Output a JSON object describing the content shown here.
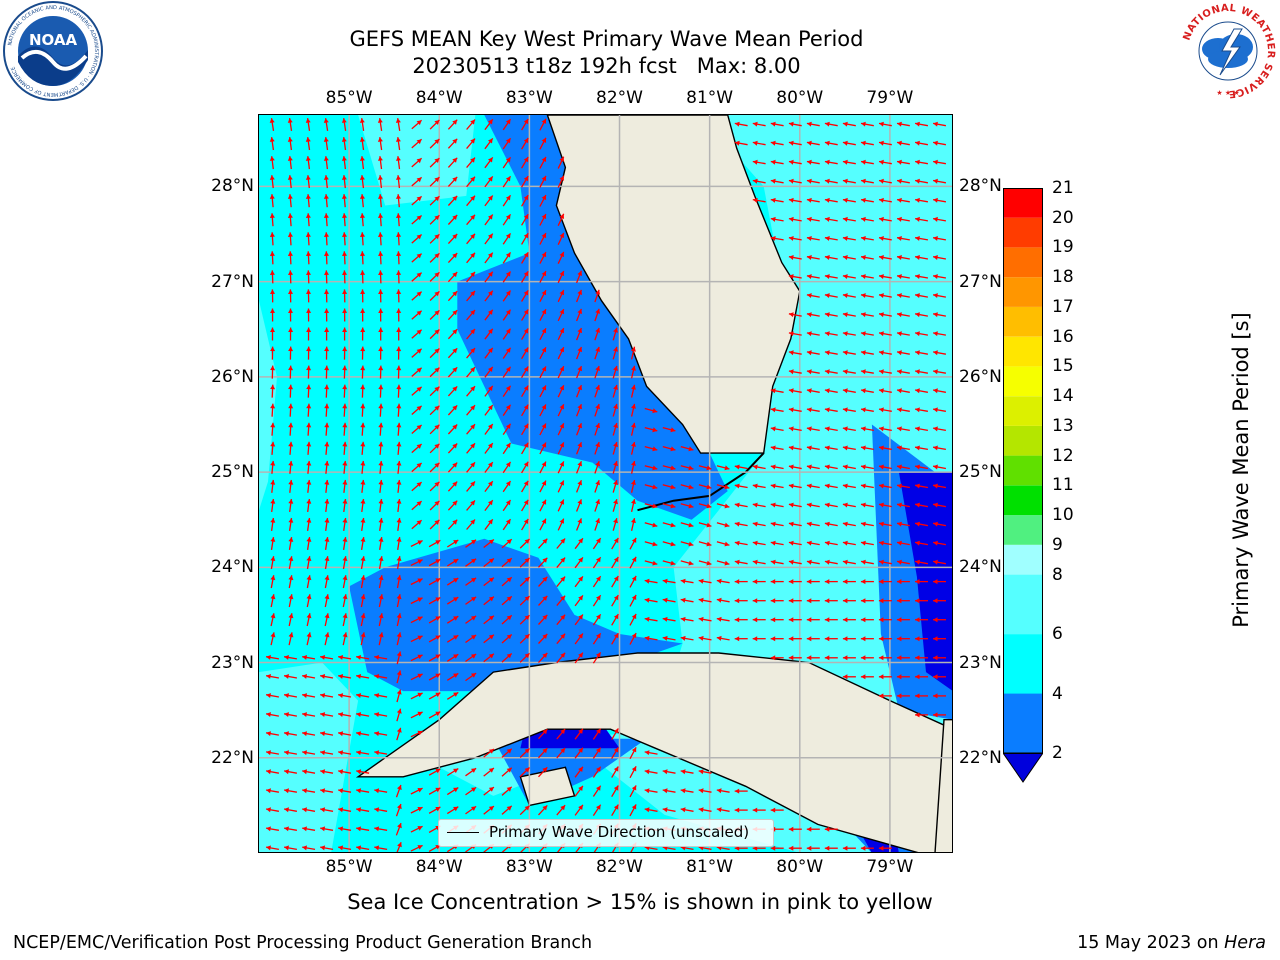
{
  "title": {
    "line1": "GEFS MEAN Key West Primary Wave Mean Period",
    "line2": "20230513 t18z 192h fcst   Max: 8.00"
  },
  "map": {
    "lon_range": [
      -86.0,
      -78.3
    ],
    "lat_range": [
      21.0,
      28.75
    ],
    "x_ticks": [
      "85°W",
      "84°W",
      "83°W",
      "82°W",
      "81°W",
      "80°W",
      "79°W"
    ],
    "y_ticks": [
      "28°N",
      "27°N",
      "26°N",
      "25°N",
      "24°N",
      "23°N",
      "22°N"
    ],
    "colors": {
      "ocean_cyan": "#00ffff",
      "ocean_light": "#55ffff",
      "ocean_blue": "#0a7dff",
      "ocean_deep": "#0000e6",
      "land": "#eeecde",
      "arrows": "#ff0000",
      "grid": "#b4b4b4"
    }
  },
  "legend": {
    "label": "Primary Wave Direction (unscaled)"
  },
  "colorbar": {
    "label": "Primary Wave Mean Period [s]",
    "ticks": [
      "2",
      "4",
      "6",
      "8",
      "9",
      "10",
      "11",
      "12",
      "13",
      "14",
      "15",
      "16",
      "17",
      "18",
      "19",
      "20",
      "21"
    ],
    "bins": [
      {
        "from": 2,
        "to": 4,
        "color": "#0a7dff"
      },
      {
        "from": 4,
        "to": 6,
        "color": "#00ffff"
      },
      {
        "from": 6,
        "to": 8,
        "color": "#55ffff"
      },
      {
        "from": 8,
        "to": 9,
        "color": "#a0ffff"
      },
      {
        "from": 9,
        "to": 10,
        "color": "#50f080"
      },
      {
        "from": 10,
        "to": 11,
        "color": "#00e000"
      },
      {
        "from": 11,
        "to": 12,
        "color": "#60e000"
      },
      {
        "from": 12,
        "to": 13,
        "color": "#b4e600"
      },
      {
        "from": 13,
        "to": 14,
        "color": "#dcf000"
      },
      {
        "from": 14,
        "to": 15,
        "color": "#f6ff00"
      },
      {
        "from": 15,
        "to": 16,
        "color": "#ffe600"
      },
      {
        "from": 16,
        "to": 17,
        "color": "#ffbe00"
      },
      {
        "from": 17,
        "to": 18,
        "color": "#ff9600"
      },
      {
        "from": 18,
        "to": 19,
        "color": "#ff6e00"
      },
      {
        "from": 19,
        "to": 20,
        "color": "#ff3c00"
      },
      {
        "from": 20,
        "to": 21,
        "color": "#ff0000"
      }
    ],
    "under_color": "#0000dc"
  },
  "note": "Sea Ice Concentration > 15% is shown in pink to yellow",
  "footer": {
    "left": "NCEP/EMC/Verification Post Processing Product Generation Branch",
    "right_date": "15 May 2023 on ",
    "right_machine": "Hera"
  },
  "logos": {
    "noaa_text": "NOAA",
    "noaa_ring": "NATIONAL OCEANIC AND ATMOSPHERIC ADMINISTRATION · U.S. DEPARTMENT OF COMMERCE",
    "nws_ring": "NATIONAL WEATHER SERVICE"
  }
}
